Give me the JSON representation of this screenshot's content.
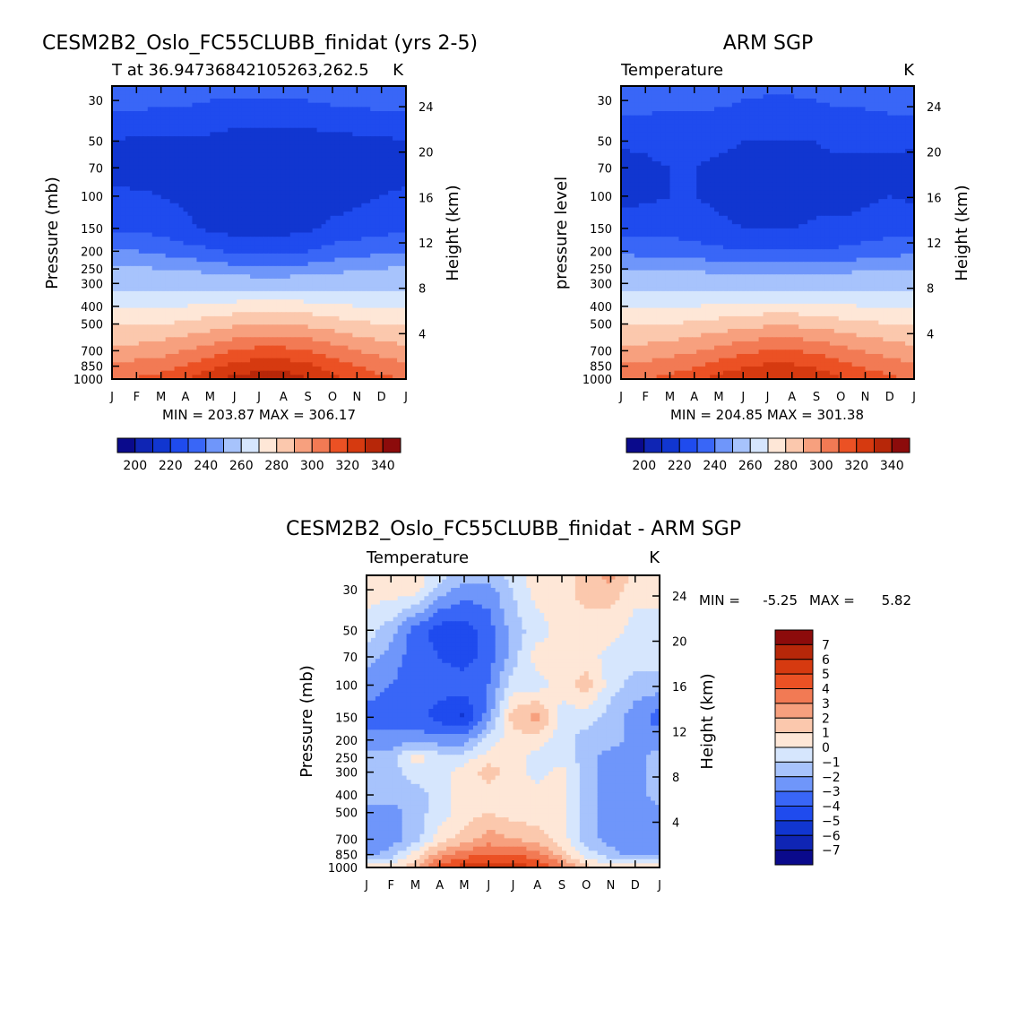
{
  "palettes": {
    "abs": [
      "#0a0a8c",
      "#0f25b4",
      "#1136d0",
      "#1f4bee",
      "#3966f7",
      "#6f96fa",
      "#a7c3fc",
      "#d6e6fd",
      "#fee7d7",
      "#fbc8ad",
      "#f7a07e",
      "#f27a54",
      "#eb5124",
      "#d63a10",
      "#b72709",
      "#8c0b0b"
    ],
    "diff": [
      "#0a0a8c",
      "#0f25b4",
      "#1136d0",
      "#1f4bee",
      "#3966f7",
      "#6f96fa",
      "#a7c3fc",
      "#d6e6fd",
      "#fee7d7",
      "#fbc8ad",
      "#f7a07e",
      "#f27a54",
      "#eb5124",
      "#d63a10",
      "#b72709",
      "#8c0b0b"
    ]
  },
  "chart_data": [
    {
      "id": "model",
      "type": "contour",
      "title": "CESM2B2_Oslo_FC55CLUBB_finidat (yrs 2-5)",
      "left_label": "T at 36.94736842105263,262.5",
      "right_label": "K",
      "ylabel": "Pressure (mb)",
      "ylabel_right": "Height (km)",
      "x_ticks": [
        "J",
        "F",
        "M",
        "A",
        "M",
        "J",
        "J",
        "A",
        "S",
        "O",
        "N",
        "D",
        "J"
      ],
      "y_ticks": [
        30,
        50,
        70,
        100,
        150,
        200,
        250,
        300,
        400,
        500,
        700,
        850,
        1000
      ],
      "y_right_ticks": [
        24,
        20,
        16,
        12,
        8,
        4
      ],
      "ylim": [
        1000,
        25
      ],
      "stats": "MIN = 203.87 MAX = 306.17",
      "levels": [
        200,
        220,
        240,
        260,
        280,
        300,
        320,
        340
      ],
      "contour_levels": [
        195,
        200,
        205,
        210,
        215,
        220,
        230,
        240,
        250,
        260,
        270,
        280,
        290,
        300,
        305
      ],
      "months": [
        0,
        1,
        2,
        3,
        4,
        5,
        6,
        7,
        8,
        9,
        10,
        11,
        12
      ],
      "pressure": [
        25,
        30,
        50,
        70,
        100,
        150,
        200,
        250,
        300,
        400,
        500,
        700,
        850,
        1000
      ],
      "grid": [
        [
          215,
          215,
          215,
          215,
          214,
          213,
          213,
          213,
          214,
          215,
          215,
          215,
          215
        ],
        [
          212,
          212,
          211,
          211,
          210,
          209,
          209,
          209,
          210,
          211,
          211,
          212,
          212
        ],
        [
          205,
          204,
          204,
          204,
          204,
          203,
          203,
          203,
          203,
          203,
          204,
          204,
          205
        ],
        [
          203,
          202,
          202,
          202,
          202,
          201,
          201,
          201,
          201,
          201,
          202,
          202,
          203
        ],
        [
          206,
          206,
          205,
          204,
          203,
          202,
          202,
          202,
          202,
          203,
          204,
          205,
          206
        ],
        [
          209,
          209,
          208,
          206,
          204,
          203,
          203,
          203,
          204,
          206,
          207,
          208,
          209
        ],
        [
          215,
          215,
          214,
          212,
          211,
          209,
          209,
          209,
          210,
          212,
          213,
          214,
          215
        ],
        [
          221,
          221,
          220,
          219,
          218,
          217,
          216,
          216,
          217,
          218,
          219,
          220,
          221
        ],
        [
          227,
          227,
          227,
          226,
          225,
          224,
          223,
          223,
          224,
          225,
          226,
          227,
          227
        ],
        [
          238,
          238,
          239,
          240,
          242,
          244,
          245,
          245,
          244,
          242,
          240,
          239,
          238
        ],
        [
          249,
          249,
          250,
          252,
          255,
          258,
          260,
          260,
          258,
          255,
          252,
          250,
          249
        ],
        [
          263,
          264,
          266,
          270,
          275,
          280,
          283,
          283,
          280,
          275,
          270,
          266,
          263
        ],
        [
          273,
          274,
          276,
          281,
          287,
          293,
          296,
          296,
          292,
          286,
          280,
          276,
          273
        ],
        [
          280,
          281,
          284,
          290,
          297,
          303,
          306,
          306,
          301,
          293,
          286,
          282,
          280
        ]
      ]
    },
    {
      "id": "obs",
      "type": "contour",
      "title": "ARM SGP",
      "left_label": "Temperature",
      "right_label": "K",
      "ylabel": "pressure level",
      "ylabel_right": "Height (km)",
      "x_ticks": [
        "J",
        "F",
        "M",
        "A",
        "M",
        "J",
        "J",
        "A",
        "S",
        "O",
        "N",
        "D",
        "J"
      ],
      "y_ticks": [
        30,
        50,
        70,
        100,
        150,
        200,
        250,
        300,
        400,
        500,
        700,
        850,
        1000
      ],
      "y_right_ticks": [
        24,
        20,
        16,
        12,
        8,
        4
      ],
      "ylim": [
        1000,
        25
      ],
      "stats": "MIN = 204.85 MAX = 301.38",
      "levels": [
        200,
        220,
        240,
        260,
        280,
        300,
        320,
        340
      ],
      "contour_levels": [
        195,
        200,
        205,
        210,
        215,
        220,
        230,
        240,
        250,
        260,
        270,
        280,
        290,
        300,
        305
      ],
      "months": [
        0,
        1,
        2,
        3,
        4,
        5,
        6,
        7,
        8,
        9,
        10,
        11,
        12
      ],
      "pressure": [
        25,
        30,
        50,
        70,
        100,
        150,
        200,
        250,
        300,
        400,
        500,
        700,
        850,
        1000
      ],
      "grid": [
        [
          215,
          215,
          215,
          215,
          214,
          213,
          212,
          212,
          213,
          214,
          215,
          215,
          215
        ],
        [
          212,
          212,
          211,
          211,
          211,
          210,
          209,
          209,
          210,
          211,
          211,
          212,
          212
        ],
        [
          206,
          206,
          207,
          207,
          206,
          205,
          205,
          205,
          205,
          206,
          206,
          206,
          206
        ],
        [
          203,
          204,
          205,
          205,
          204,
          204,
          203,
          203,
          204,
          204,
          204,
          204,
          203
        ],
        [
          203,
          204,
          205,
          205,
          204,
          203,
          202,
          202,
          203,
          203,
          204,
          205,
          204
        ],
        [
          208,
          208,
          208,
          207,
          206,
          205,
          205,
          205,
          206,
          206,
          207,
          208,
          208
        ],
        [
          214,
          213,
          213,
          212,
          211,
          210,
          210,
          210,
          210,
          211,
          212,
          213,
          214
        ],
        [
          220,
          220,
          219,
          219,
          218,
          217,
          217,
          217,
          217,
          218,
          219,
          220,
          220
        ],
        [
          226,
          226,
          226,
          225,
          225,
          224,
          224,
          224,
          224,
          225,
          226,
          226,
          226
        ],
        [
          238,
          238,
          239,
          240,
          241,
          243,
          244,
          244,
          243,
          241,
          240,
          239,
          238
        ],
        [
          249,
          249,
          250,
          252,
          254,
          257,
          258,
          258,
          257,
          254,
          252,
          250,
          249
        ],
        [
          263,
          264,
          266,
          269,
          273,
          277,
          280,
          280,
          278,
          273,
          269,
          266,
          263
        ],
        [
          272,
          273,
          275,
          279,
          284,
          289,
          292,
          292,
          288,
          283,
          279,
          275,
          272
        ],
        [
          279,
          280,
          283,
          288,
          294,
          299,
          301,
          301,
          297,
          291,
          286,
          282,
          279
        ]
      ]
    },
    {
      "id": "diff",
      "type": "contour",
      "title": "CESM2B2_Oslo_FC55CLUBB_finidat - ARM SGP",
      "left_label": "Temperature",
      "right_label": "K",
      "ylabel": "Pressure (mb)",
      "ylabel_right": "Height (km)",
      "x_ticks": [
        "J",
        "F",
        "M",
        "A",
        "M",
        "J",
        "J",
        "A",
        "S",
        "O",
        "N",
        "D",
        "J"
      ],
      "y_ticks": [
        30,
        50,
        70,
        100,
        150,
        200,
        250,
        300,
        400,
        500,
        700,
        850,
        1000
      ],
      "y_right_ticks": [
        24,
        20,
        16,
        12,
        8,
        4
      ],
      "ylim": [
        1000,
        25
      ],
      "stats_min_label": "MIN =",
      "stats_min": "-5.25",
      "stats_max_label": "MAX =",
      "stats_max": "5.82",
      "levels": [
        -7,
        -6,
        -5,
        -4,
        -3,
        -2,
        -1,
        0,
        1,
        2,
        3,
        4,
        5,
        6,
        7
      ],
      "contour_levels": [
        -7,
        -6,
        -5,
        -4,
        -3,
        -2,
        -1,
        0,
        1,
        2,
        3,
        4,
        5,
        6,
        7
      ],
      "months": [
        0,
        1,
        2,
        3,
        4,
        5,
        6,
        7,
        8,
        9,
        10,
        11,
        12
      ],
      "pressure": [
        25,
        30,
        50,
        70,
        100,
        150,
        200,
        250,
        300,
        400,
        500,
        700,
        850,
        1000
      ],
      "grid": [
        [
          0.5,
          0.5,
          0.5,
          -0.5,
          -1.5,
          -1.5,
          -0.5,
          0.5,
          0.5,
          1.5,
          2.5,
          0.5,
          0.5
        ],
        [
          0.5,
          0.5,
          0.5,
          -1.5,
          -2.5,
          -2.5,
          -1.0,
          0.5,
          0.5,
          1.5,
          1.5,
          0.5,
          0.5
        ],
        [
          -0.5,
          -1.5,
          -3.5,
          -4.5,
          -4.5,
          -3.5,
          -1.5,
          -0.5,
          0.5,
          0.5,
          0.5,
          -0.5,
          -0.5
        ],
        [
          -1.5,
          -2.5,
          -3.5,
          -4.0,
          -4.5,
          -3.5,
          -1.5,
          0.5,
          0.5,
          0.5,
          -0.5,
          -0.5,
          -0.5
        ],
        [
          -2.5,
          -3.0,
          -3.5,
          -3.5,
          -3.5,
          -3.0,
          -0.5,
          -0.5,
          0.5,
          1.5,
          -0.5,
          -1.5,
          -1.5
        ],
        [
          -3.5,
          -3.5,
          -3.5,
          -4.5,
          -5.2,
          -2.5,
          1.5,
          2.5,
          -0.5,
          -0.5,
          -1.5,
          -2.5,
          -3.5
        ],
        [
          -2.5,
          -2.5,
          -2.5,
          -2.5,
          -2.5,
          -0.5,
          0.5,
          0.5,
          -0.5,
          -1.5,
          -1.5,
          -2.5,
          -2.5
        ],
        [
          -1.5,
          -1.5,
          0.5,
          -0.5,
          -0.5,
          0.5,
          0.5,
          -0.5,
          -0.5,
          -1.5,
          -2.5,
          -2.5,
          -1.5
        ],
        [
          -1.5,
          -1.5,
          -0.5,
          -0.5,
          0.5,
          1.5,
          0.5,
          -0.5,
          0.5,
          -1.5,
          -2.5,
          -2.5,
          -1.5
        ],
        [
          -1.5,
          -1.5,
          -1.5,
          -0.5,
          0.5,
          0.5,
          0.5,
          0.5,
          0.5,
          -1.5,
          -2.5,
          -2.5,
          -1.5
        ],
        [
          -2.5,
          -2.5,
          -1.5,
          -0.5,
          0.5,
          1.0,
          0.5,
          0.5,
          0.5,
          -1.5,
          -2.5,
          -2.5,
          -2.5
        ],
        [
          -3.0,
          -2.5,
          -1.5,
          0.5,
          1.5,
          2.5,
          2.0,
          1.5,
          0.5,
          -1.5,
          -2.5,
          -3.0,
          -3.0
        ],
        [
          -2.5,
          -1.5,
          0.5,
          2.5,
          3.5,
          4.0,
          4.0,
          3.5,
          1.5,
          -0.5,
          -1.5,
          -2.5,
          -2.5
        ],
        [
          0.5,
          0.5,
          1.5,
          4.5,
          5.5,
          5.8,
          5.5,
          5.0,
          3.5,
          1.5,
          0.5,
          0.5,
          0.5
        ]
      ]
    }
  ]
}
